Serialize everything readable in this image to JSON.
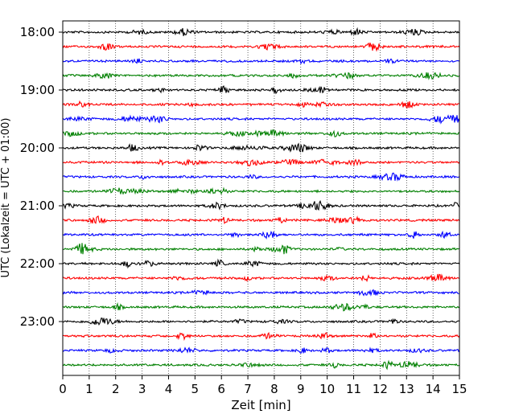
{
  "chart_data": {
    "type": "line",
    "title": "",
    "xlabel": "Zeit  [min]",
    "ylabel": "UTC (Lokalzeit = UTC + 01:00)",
    "xlim": [
      0,
      15
    ],
    "x_ticks": [
      "0",
      "1",
      "2",
      "3",
      "4",
      "5",
      "6",
      "7",
      "8",
      "9",
      "10",
      "11",
      "12",
      "13",
      "14",
      "15"
    ],
    "y_ticks": [
      "18:00",
      "19:00",
      "20:00",
      "21:00",
      "22:00",
      "23:00"
    ],
    "grid_x": true,
    "grid_style": "dotted",
    "trace_colors": [
      "#000000",
      "#ff0000",
      "#0000ff",
      "#008000"
    ],
    "series": [
      {
        "start": "18:00",
        "color": "#000000"
      },
      {
        "start": "18:15",
        "color": "#ff0000"
      },
      {
        "start": "18:30",
        "color": "#0000ff"
      },
      {
        "start": "18:45",
        "color": "#008000"
      },
      {
        "start": "19:00",
        "color": "#000000"
      },
      {
        "start": "19:15",
        "color": "#ff0000"
      },
      {
        "start": "19:30",
        "color": "#0000ff"
      },
      {
        "start": "19:45",
        "color": "#008000"
      },
      {
        "start": "20:00",
        "color": "#000000"
      },
      {
        "start": "20:15",
        "color": "#ff0000"
      },
      {
        "start": "20:30",
        "color": "#0000ff"
      },
      {
        "start": "20:45",
        "color": "#008000"
      },
      {
        "start": "21:00",
        "color": "#000000"
      },
      {
        "start": "21:15",
        "color": "#ff0000"
      },
      {
        "start": "21:30",
        "color": "#0000ff"
      },
      {
        "start": "21:45",
        "color": "#008000"
      },
      {
        "start": "22:00",
        "color": "#000000"
      },
      {
        "start": "22:15",
        "color": "#ff0000"
      },
      {
        "start": "22:30",
        "color": "#0000ff"
      },
      {
        "start": "22:45",
        "color": "#008000"
      },
      {
        "start": "23:00",
        "color": "#000000"
      },
      {
        "start": "23:15",
        "color": "#ff0000"
      },
      {
        "start": "23:30",
        "color": "#0000ff"
      },
      {
        "start": "23:45",
        "color": "#008000"
      }
    ]
  }
}
